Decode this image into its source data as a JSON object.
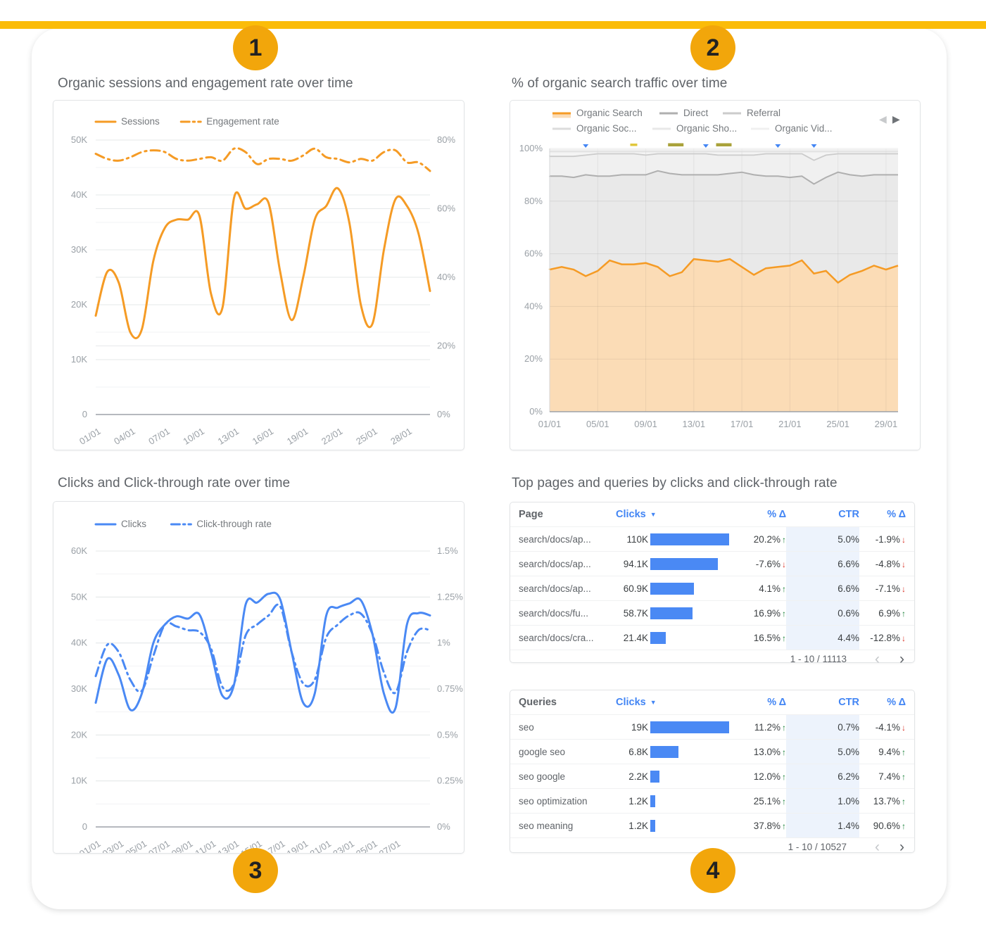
{
  "page": {
    "top_bar_color": "#FBBC09",
    "badge_color": "#F2A60B",
    "badges": [
      "1",
      "2",
      "3",
      "4"
    ]
  },
  "icons": {
    "sort_desc": "▼",
    "delta_up": "↑",
    "delta_down": "↓",
    "page_prev": "‹",
    "page_next": "›",
    "chart_prev": "◀",
    "chart_next": "▶"
  },
  "colors": {
    "orange_line": "#F59B25",
    "orange_fill": "#FBDCB6",
    "blue_line": "#4A89F4",
    "table_bar": "#4A89F4",
    "up_green": "#188038",
    "down_red": "#D93025",
    "header_blue": "#4285F4"
  },
  "chart_data": [
    {
      "id": "sessions_engagement",
      "type": "line",
      "title": "Organic sessions and engagement rate over time",
      "legend": [
        "Sessions",
        "Engagement rate"
      ],
      "x_tick_labels": [
        "01/01",
        "04/01",
        "07/01",
        "10/01",
        "13/01",
        "16/01",
        "19/01",
        "22/01",
        "25/01",
        "28/01"
      ],
      "x_tick_step": 3,
      "left_axis": {
        "labels": [
          "0",
          "10K",
          "20K",
          "30K",
          "40K",
          "50K"
        ],
        "values": [
          0,
          10000,
          20000,
          30000,
          40000,
          50000
        ],
        "max": 50000,
        "minor_step": 5000
      },
      "right_axis": {
        "labels": [
          "0%",
          "20%",
          "40%",
          "60%",
          "80%"
        ],
        "values": [
          0,
          20,
          40,
          60,
          80
        ],
        "max": 80
      },
      "series": [
        {
          "name": "Sessions",
          "axis": "left",
          "style": "solid",
          "values": [
            18000,
            26000,
            24000,
            15000,
            15500,
            28000,
            34000,
            35500,
            35500,
            36200,
            22000,
            19500,
            39500,
            37500,
            38300,
            38500,
            26000,
            17200,
            25000,
            35500,
            38000,
            41200,
            35000,
            20000,
            16500,
            30000,
            39200,
            38000,
            33000,
            22500
          ]
        },
        {
          "name": "Engagement rate",
          "axis": "right",
          "style": "dashdot",
          "values": [
            76,
            74.5,
            74,
            75,
            76.5,
            77,
            76.5,
            74.5,
            74,
            74.5,
            75,
            74,
            77.5,
            76.5,
            73,
            74.5,
            74.5,
            74,
            75.5,
            77.5,
            75,
            74.5,
            73.5,
            74.5,
            74,
            76.5,
            77,
            73.5,
            73.5,
            71
          ]
        }
      ]
    },
    {
      "id": "traffic_share",
      "type": "area",
      "title": "% of organic search traffic over time",
      "x_tick_labels": [
        "01/01",
        "05/01",
        "09/01",
        "13/01",
        "17/01",
        "21/01",
        "25/01",
        "29/01"
      ],
      "x_tick_step": 4,
      "y_axis": {
        "labels": [
          "0%",
          "20%",
          "40%",
          "60%",
          "80%",
          "100%"
        ],
        "values": [
          0,
          20,
          40,
          60,
          80,
          100
        ],
        "max": 100
      },
      "values_are": "cumulative_percent",
      "series": [
        {
          "name": "Organic Search",
          "line": "#F59B25",
          "fill": "#FBDCB6",
          "width": 2.5,
          "cumulative": [
            54,
            55,
            54,
            51.5,
            53.5,
            57.5,
            56,
            56,
            56.5,
            55,
            51.5,
            53,
            58,
            57.5,
            57,
            58,
            55,
            52,
            54.5,
            55,
            55.5,
            57.5,
            52.5,
            53.5,
            49,
            52,
            53.5,
            55.5,
            54,
            55.5
          ]
        },
        {
          "name": "Direct",
          "line": "#AFAFAF",
          "fill": "#E9E9E9",
          "width": 2,
          "cumulative": [
            89.5,
            89.5,
            89,
            90,
            89.5,
            89.5,
            90,
            90,
            90,
            91.5,
            90.5,
            90,
            90,
            90,
            90,
            90.5,
            91,
            90,
            89.5,
            89.5,
            89,
            89.5,
            86.5,
            89,
            91,
            90,
            89.5,
            90,
            90,
            90
          ]
        },
        {
          "name": "Referral",
          "line": "#CBCBCB",
          "fill": "#F0F0F0",
          "width": 1.8,
          "cumulative": [
            97,
            97,
            97,
            97.5,
            98,
            98,
            98,
            98,
            97.5,
            98,
            98,
            98,
            98,
            98,
            97.5,
            97.5,
            97.5,
            97.5,
            98,
            98,
            98,
            98,
            95.5,
            97.5,
            98,
            98,
            98,
            98,
            98,
            98
          ]
        },
        {
          "name": "Organic Soc...",
          "line": "#DCDCDC",
          "fill": "#F4F4F4",
          "width": 1.4,
          "cumulative_constant": 98.8
        },
        {
          "name": "Organic Sho...",
          "line": "#E8E8E8",
          "fill": "#F8F8F8",
          "width": 1.3,
          "cumulative_constant": 99.4
        },
        {
          "name": "Organic Vid...",
          "line": "#F0F0F0",
          "fill": "#FBFBFB",
          "width": 1.2,
          "cumulative_constant": 100
        }
      ],
      "annotations": [
        {
          "shape": "triangle",
          "color": "#4285F4",
          "day": 3
        },
        {
          "shape": "dash",
          "color": "#E0C73C",
          "day": 7
        },
        {
          "shape": "dash-wide",
          "color": "#A9A23A",
          "day": 10.5
        },
        {
          "shape": "triangle",
          "color": "#4285F4",
          "day": 13
        },
        {
          "shape": "dash-wide",
          "color": "#A9A23A",
          "day": 14.5
        },
        {
          "shape": "triangle",
          "color": "#4285F4",
          "day": 19
        },
        {
          "shape": "triangle",
          "color": "#4285F4",
          "day": 22
        }
      ],
      "nav_arrows": true
    },
    {
      "id": "clicks_ctr",
      "type": "line",
      "title": "Clicks and Click-through rate over time",
      "legend": [
        "Clicks",
        "Click-through rate"
      ],
      "x_tick_labels": [
        "01/01",
        "03/01",
        "05/01",
        "07/01",
        "09/01",
        "11/01",
        "13/01",
        "15/01",
        "17/01",
        "19/01",
        "21/01",
        "23/01",
        "25/01",
        "27/01"
      ],
      "x_tick_step": 2,
      "left_axis": {
        "labels": [
          "0",
          "10K",
          "20K",
          "30K",
          "40K",
          "50K",
          "60K"
        ],
        "values": [
          0,
          10000,
          20000,
          30000,
          40000,
          50000,
          60000
        ],
        "max": 60000,
        "minor_step": 5000
      },
      "right_axis": {
        "labels": [
          "0%",
          "0.25%",
          "0.5%",
          "0.75%",
          "1%",
          "1.25%",
          "1.5%"
        ],
        "values": [
          0,
          0.25,
          0.5,
          0.75,
          1,
          1.25,
          1.5
        ],
        "max": 1.5
      },
      "series": [
        {
          "name": "Clicks",
          "axis": "left",
          "style": "solid",
          "values": [
            27000,
            36500,
            33000,
            25500,
            29000,
            40000,
            44000,
            45800,
            45300,
            46200,
            38000,
            28500,
            31000,
            48300,
            48800,
            50700,
            49500,
            38000,
            27000,
            29000,
            46000,
            47700,
            48600,
            49300,
            42000,
            29000,
            25800,
            44000,
            46500,
            46000
          ]
        },
        {
          "name": "Click-through rate",
          "axis": "right",
          "style": "dashdot",
          "values": [
            0.82,
            0.99,
            0.95,
            0.8,
            0.74,
            0.93,
            1.1,
            1.09,
            1.07,
            1.06,
            0.97,
            0.76,
            0.78,
            1.04,
            1.1,
            1.15,
            1.2,
            0.95,
            0.78,
            0.8,
            1.03,
            1.1,
            1.15,
            1.16,
            1.05,
            0.84,
            0.73,
            0.95,
            1.07,
            1.07
          ]
        }
      ]
    },
    {
      "id": "top_pages",
      "type": "table",
      "title": "Top pages and queries by clicks and click-through rate",
      "headers": [
        "Page",
        "Clicks",
        "% Δ",
        "CTR",
        "% Δ"
      ],
      "sorted_by": "Clicks",
      "bar_max": 110,
      "rows": [
        {
          "label": "search/docs/ap...",
          "clicks": "110K",
          "clicks_value": 110,
          "delta1": "20.2%",
          "delta1_dir": "up",
          "ctr": "5.0%",
          "delta2": "-1.9%",
          "delta2_dir": "down"
        },
        {
          "label": "search/docs/ap...",
          "clicks": "94.1K",
          "clicks_value": 94.1,
          "delta1": "-7.6%",
          "delta1_dir": "down",
          "ctr": "6.6%",
          "delta2": "-4.8%",
          "delta2_dir": "down"
        },
        {
          "label": "search/docs/ap...",
          "clicks": "60.9K",
          "clicks_value": 60.9,
          "delta1": "4.1%",
          "delta1_dir": "up",
          "ctr": "6.6%",
          "delta2": "-7.1%",
          "delta2_dir": "down"
        },
        {
          "label": "search/docs/fu...",
          "clicks": "58.7K",
          "clicks_value": 58.7,
          "delta1": "16.9%",
          "delta1_dir": "up",
          "ctr": "0.6%",
          "delta2": "6.9%",
          "delta2_dir": "up"
        },
        {
          "label": "search/docs/cra...",
          "clicks": "21.4K",
          "clicks_value": 21.4,
          "delta1": "16.5%",
          "delta1_dir": "up",
          "ctr": "4.4%",
          "delta2": "-12.8%",
          "delta2_dir": "down"
        }
      ],
      "footer_range": "1 - 10 / 11113"
    },
    {
      "id": "top_queries",
      "type": "table",
      "headers": [
        "Queries",
        "Clicks",
        "% Δ",
        "CTR",
        "% Δ"
      ],
      "sorted_by": "Clicks",
      "bar_max": 19,
      "rows": [
        {
          "label": "seo",
          "clicks": "19K",
          "clicks_value": 19,
          "delta1": "11.2%",
          "delta1_dir": "up",
          "ctr": "0.7%",
          "delta2": "-4.1%",
          "delta2_dir": "down"
        },
        {
          "label": "google seo",
          "clicks": "6.8K",
          "clicks_value": 6.8,
          "delta1": "13.0%",
          "delta1_dir": "up",
          "ctr": "5.0%",
          "delta2": "9.4%",
          "delta2_dir": "up"
        },
        {
          "label": "seo google",
          "clicks": "2.2K",
          "clicks_value": 2.2,
          "delta1": "12.0%",
          "delta1_dir": "up",
          "ctr": "6.2%",
          "delta2": "7.4%",
          "delta2_dir": "up"
        },
        {
          "label": "seo optimization",
          "clicks": "1.2K",
          "clicks_value": 1.2,
          "delta1": "25.1%",
          "delta1_dir": "up",
          "ctr": "1.0%",
          "delta2": "13.7%",
          "delta2_dir": "up"
        },
        {
          "label": "seo meaning",
          "clicks": "1.2K",
          "clicks_value": 1.2,
          "delta1": "37.8%",
          "delta1_dir": "up",
          "ctr": "1.4%",
          "delta2": "90.6%",
          "delta2_dir": "up"
        }
      ],
      "footer_range": "1 - 10 / 10527"
    }
  ]
}
